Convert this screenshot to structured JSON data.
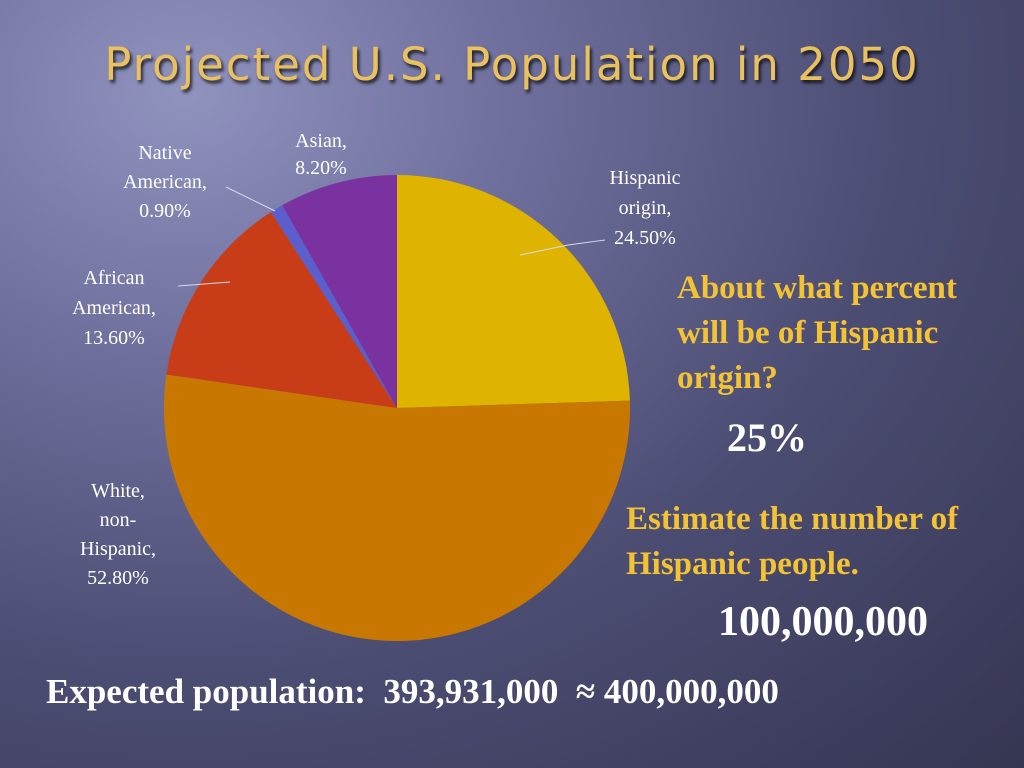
{
  "slide": {
    "title": "Projected U.S. Population in 2050",
    "question1": "About what percent will be of Hispanic origin?",
    "answer1": "25%",
    "question2": "Estimate the number of Hispanic people.",
    "answer2": "100,000,000",
    "footer": "Expected population:  393,931,000  ≈ 400,000,000"
  },
  "chart_data": {
    "type": "pie",
    "title": "Projected U.S. Population in 2050",
    "start": "12 o'clock",
    "direction": "clockwise",
    "slices": [
      {
        "name": "Hispanic origin",
        "value": 24.5,
        "color": "#dfb400",
        "label_lines": [
          "Hispanic",
          "origin,",
          "24.50%"
        ]
      },
      {
        "name": "White, non-Hispanic",
        "value": 52.8,
        "color": "#c87800",
        "label_lines": [
          "White,",
          "non-",
          "Hispanic,",
          "52.80%"
        ]
      },
      {
        "name": "African American",
        "value": 13.6,
        "color": "#c83c18",
        "label_lines": [
          "African",
          "American,",
          "13.60%"
        ]
      },
      {
        "name": "Native American",
        "value": 0.9,
        "color": "#5a5fcc",
        "label_lines": [
          "Native",
          "American,",
          "0.90%"
        ]
      },
      {
        "name": "Asian",
        "value": 8.2,
        "color": "#7a32a0",
        "label_lines": [
          "Asian,",
          "8.20%"
        ]
      }
    ]
  }
}
